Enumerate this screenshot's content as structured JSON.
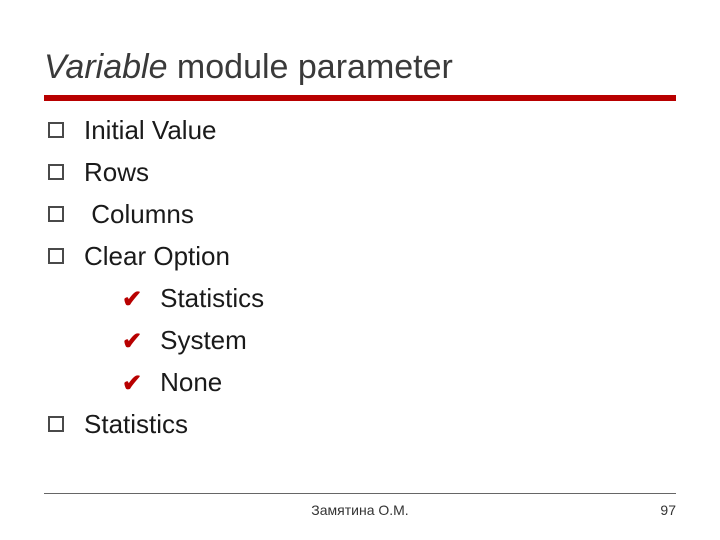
{
  "title_italic": "Variable",
  "title_rest": " module parameter",
  "colors": {
    "accent": "#b80000",
    "text": "#1a1a1a",
    "title": "#3a3a3a",
    "bullet_border": "#4a4a4a",
    "background": "#ffffff",
    "footer_rule": "#666666"
  },
  "typography": {
    "title_fontsize": 34,
    "item_fontsize": 26,
    "footer_fontsize": 14,
    "font_family": "Verdana"
  },
  "items": [
    {
      "text": "Initial Value",
      "indent": "none"
    },
    {
      "text": "Rows",
      "indent": "none"
    },
    {
      "text": "Columns",
      "indent": "pre-space"
    },
    {
      "text": "Clear Option",
      "indent": "none"
    }
  ],
  "sub_items": [
    {
      "text": "Statistics"
    },
    {
      "text": "System"
    },
    {
      "text": "None"
    }
  ],
  "items_after": [
    {
      "text": "Statistics",
      "indent": "none"
    }
  ],
  "footer": {
    "author": "Замятина О.М.",
    "page": "97"
  }
}
